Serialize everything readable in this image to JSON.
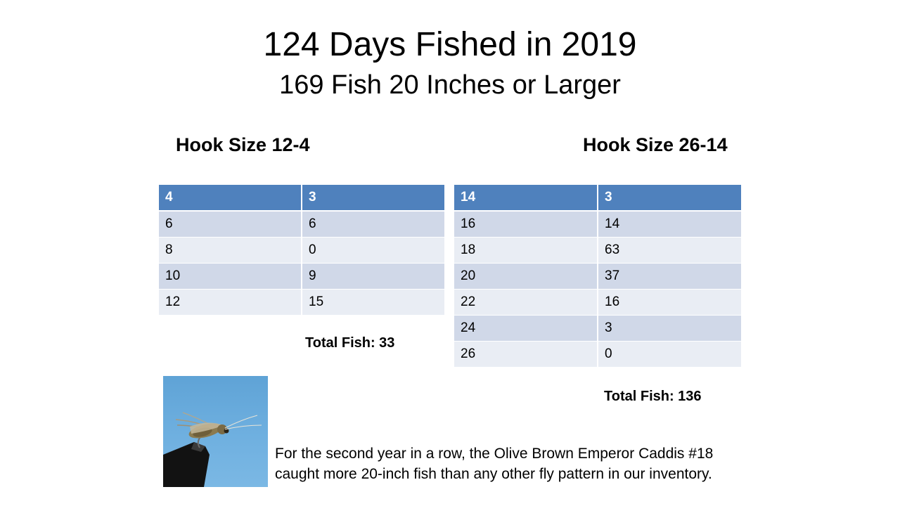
{
  "slide": {
    "title": "124 Days Fished in 2019",
    "subtitle": "169 Fish 20 Inches or Larger"
  },
  "left_table": {
    "heading": "Hook Size 12-4",
    "header": [
      "4",
      "3"
    ],
    "rows": [
      [
        "6",
        "6"
      ],
      [
        "8",
        "0"
      ],
      [
        "10",
        "9"
      ],
      [
        "12",
        "15"
      ]
    ],
    "total": "Total Fish: 33"
  },
  "right_table": {
    "heading": "Hook Size 26-14",
    "header": [
      "14",
      "3"
    ],
    "rows": [
      [
        "16",
        "14"
      ],
      [
        "18",
        "63"
      ],
      [
        "20",
        "37"
      ],
      [
        "22",
        "16"
      ],
      [
        "24",
        "3"
      ],
      [
        "26",
        "0"
      ]
    ],
    "total": "Total Fish: 136"
  },
  "caption": {
    "line1": "For the second year in a row, the Olive Brown Emperor Caddis #18",
    "line2": "caught more 20-inch fish than any other fly pattern in our inventory."
  },
  "colors": {
    "header_bg": "#4f81bd",
    "row_odd": "#d0d8e8",
    "row_even": "#e9edf4"
  }
}
